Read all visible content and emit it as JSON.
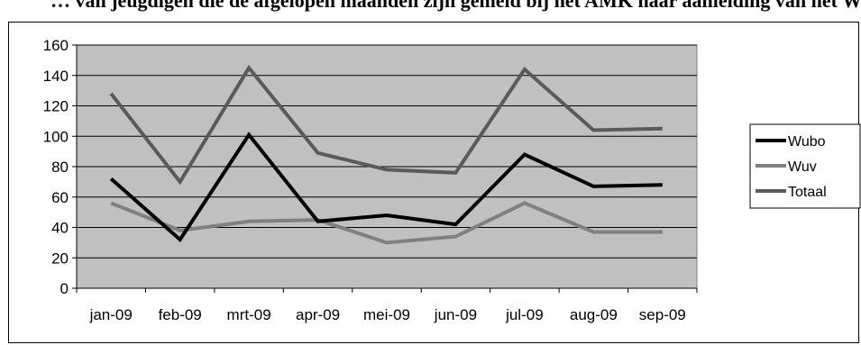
{
  "header_text": "… van jeugdigen die de afgelopen maanden zijn gemeld bij het AMK naar aanleiding van het Wubo- en Wuv-registratiesysteem",
  "chart_data": {
    "type": "line",
    "categories": [
      "jan-09",
      "feb-09",
      "mrt-09",
      "apr-09",
      "mei-09",
      "jun-09",
      "jul-09",
      "aug-09",
      "sep-09"
    ],
    "ylim": [
      0,
      160
    ],
    "yticks": [
      0,
      20,
      40,
      60,
      80,
      100,
      120,
      140,
      160
    ],
    "grid": true,
    "legend_position": "right",
    "plot_background": "#c0c0c0",
    "series": [
      {
        "name": "Wubo",
        "color": "#000000",
        "values": [
          72,
          32,
          101,
          44,
          48,
          42,
          88,
          67,
          68
        ]
      },
      {
        "name": "Wuv",
        "color": "#808080",
        "values": [
          56,
          38,
          44,
          45,
          30,
          34,
          56,
          37,
          37
        ]
      },
      {
        "name": "Totaal",
        "color": "#5a5a5a",
        "values": [
          128,
          70,
          145,
          89,
          78,
          76,
          144,
          104,
          105
        ]
      }
    ]
  }
}
